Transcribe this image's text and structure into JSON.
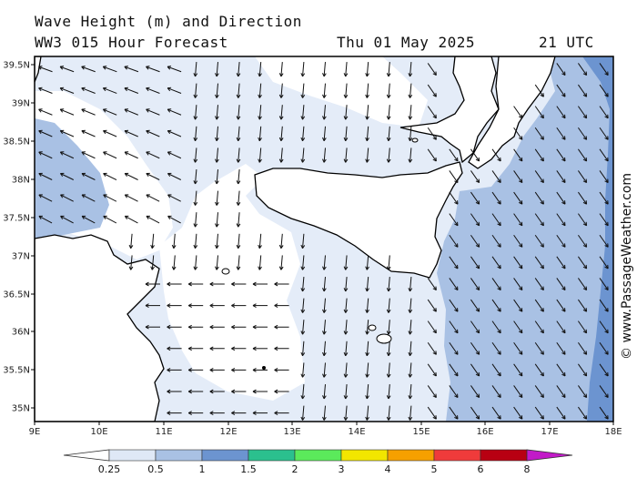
{
  "header": {
    "title": "Wave Height (m) and Direction",
    "model_line": "WW3 015 Hour Forecast",
    "date": "Thu 01 May 2025",
    "time": "21 UTC"
  },
  "credit": "© www.PassageWeather.com",
  "axes": {
    "lat_labels": [
      "39.5N",
      "39N",
      "38.5N",
      "38N",
      "37.5N",
      "37N",
      "36.5N",
      "36N",
      "35.5N",
      "35N"
    ],
    "lon_labels": [
      "9E",
      "10E",
      "11E",
      "12E",
      "13E",
      "14E",
      "15E",
      "16E",
      "17E",
      "18E"
    ],
    "lat_range": [
      34.8,
      39.6
    ],
    "lon_range": [
      9,
      18
    ]
  },
  "legend": {
    "labels": [
      "0.25",
      "0.5",
      "1",
      "1.5",
      "2",
      "3",
      "4",
      "5",
      "6",
      "8"
    ],
    "colors": [
      "#dfe8f6",
      "#a9c1e4",
      "#6c94d0",
      "#2bc08e",
      "#5bea5b",
      "#f2e600",
      "#f6a000",
      "#ef3b3b",
      "#b80012",
      "#c21ac8"
    ]
  },
  "colors": {
    "land": "#ffffff",
    "sea_low": "#e4ecf8",
    "sea_mid": "#a9c1e4",
    "sea_high": "#6c94d0",
    "arrow": "#111111",
    "coast": "#000000"
  }
}
